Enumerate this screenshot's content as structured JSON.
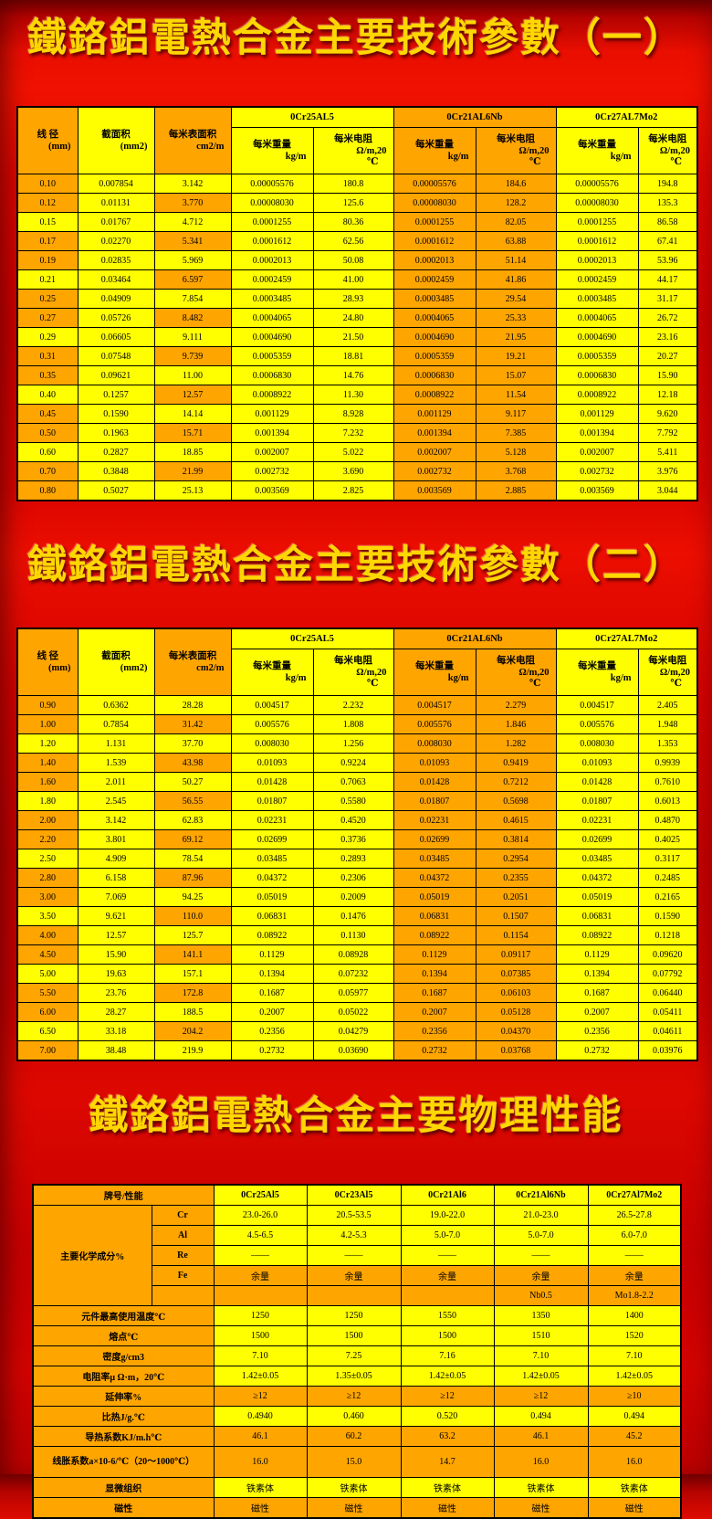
{
  "titles": {
    "t1": "鐵鉻鋁電熱合金主要技術參數（一）",
    "t2": "鐵鉻鋁電熱合金主要技術參數（二）",
    "t3": "鐵鉻鋁電熱合金主要物理性能"
  },
  "tech_header": {
    "diameter_label": "线 径",
    "diameter_unit": "(mm)",
    "area_label": "截面积",
    "area_unit": "(mm2)",
    "surface_label": "每米表面积",
    "surface_unit": "cm2/m",
    "weight_label": "每米重量",
    "weight_unit": "kg/m",
    "resistance_label": "每米电阻",
    "resistance_unit": "Ω/m,20",
    "resistance_unit2": "℃"
  },
  "table1": {
    "alloys": [
      "0Cr25AL5",
      "0Cr21AL6Nb",
      "0Cr27AL7Mo2"
    ],
    "rows": [
      [
        "0.10",
        "0.007854",
        "3.142",
        "0.00005576",
        "180.8",
        "0.00005576",
        "184.6",
        "0.00005576",
        "194.8"
      ],
      [
        "0.12",
        "0.01131",
        "3.770",
        "0.00008030",
        "125.6",
        "0.00008030",
        "128.2",
        "0.00008030",
        "135.3"
      ],
      [
        "0.15",
        "0.01767",
        "4.712",
        "0.0001255",
        "80.36",
        "0.0001255",
        "82.05",
        "0.0001255",
        "86.58"
      ],
      [
        "0.17",
        "0.02270",
        "5.341",
        "0.0001612",
        "62.56",
        "0.0001612",
        "63.88",
        "0.0001612",
        "67.41"
      ],
      [
        "0.19",
        "0.02835",
        "5.969",
        "0.0002013",
        "50.08",
        "0.0002013",
        "51.14",
        "0.0002013",
        "53.96"
      ],
      [
        "0.21",
        "0.03464",
        "6.597",
        "0.0002459",
        "41.00",
        "0.0002459",
        "41.86",
        "0.0002459",
        "44.17"
      ],
      [
        "0.25",
        "0.04909",
        "7.854",
        "0.0003485",
        "28.93",
        "0.0003485",
        "29.54",
        "0.0003485",
        "31.17"
      ],
      [
        "0.27",
        "0.05726",
        "8.482",
        "0.0004065",
        "24.80",
        "0.0004065",
        "25.33",
        "0.0004065",
        "26.72"
      ],
      [
        "0.29",
        "0.06605",
        "9.111",
        "0.0004690",
        "21.50",
        "0.0004690",
        "21.95",
        "0.0004690",
        "23.16"
      ],
      [
        "0.31",
        "0.07548",
        "9.739",
        "0.0005359",
        "18.81",
        "0.0005359",
        "19.21",
        "0.0005359",
        "20.27"
      ],
      [
        "0.35",
        "0.09621",
        "11.00",
        "0.0006830",
        "14.76",
        "0.0006830",
        "15.07",
        "0.0006830",
        "15.90"
      ],
      [
        "0.40",
        "0.1257",
        "12.57",
        "0.0008922",
        "11.30",
        "0.0008922",
        "11.54",
        "0.0008922",
        "12.18"
      ],
      [
        "0.45",
        "0.1590",
        "14.14",
        "0.001129",
        "8.928",
        "0.001129",
        "9.117",
        "0.001129",
        "9.620"
      ],
      [
        "0.50",
        "0.1963",
        "15.71",
        "0.001394",
        "7.232",
        "0.001394",
        "7.385",
        "0.001394",
        "7.792"
      ],
      [
        "0.60",
        "0.2827",
        "18.85",
        "0.002007",
        "5.022",
        "0.002007",
        "5.128",
        "0.002007",
        "5.411"
      ],
      [
        "0.70",
        "0.3848",
        "21.99",
        "0.002732",
        "3.690",
        "0.002732",
        "3.768",
        "0.002732",
        "3.976"
      ],
      [
        "0.80",
        "0.5027",
        "25.13",
        "0.003569",
        "2.825",
        "0.003569",
        "2.885",
        "0.003569",
        "3.044"
      ]
    ]
  },
  "table2": {
    "alloys": [
      "0Cr25AL5",
      "0Cr21AL6Nb",
      "0Cr27AL7Mo2"
    ],
    "rows": [
      [
        "0.90",
        "0.6362",
        "28.28",
        "0.004517",
        "2.232",
        "0.004517",
        "2.279",
        "0.004517",
        "2.405"
      ],
      [
        "1.00",
        "0.7854",
        "31.42",
        "0.005576",
        "1.808",
        "0.005576",
        "1.846",
        "0.005576",
        "1.948"
      ],
      [
        "1.20",
        "1.131",
        "37.70",
        "0.008030",
        "1.256",
        "0.008030",
        "1.282",
        "0.008030",
        "1.353"
      ],
      [
        "1.40",
        "1.539",
        "43.98",
        "0.01093",
        "0.9224",
        "0.01093",
        "0.9419",
        "0.01093",
        "0.9939"
      ],
      [
        "1.60",
        "2.011",
        "50.27",
        "0.01428",
        "0.7063",
        "0.01428",
        "0.7212",
        "0.01428",
        "0.7610"
      ],
      [
        "1.80",
        "2.545",
        "56.55",
        "0.01807",
        "0.5580",
        "0.01807",
        "0.5698",
        "0.01807",
        "0.6013"
      ],
      [
        "2.00",
        "3.142",
        "62.83",
        "0.02231",
        "0.4520",
        "0.02231",
        "0.4615",
        "0.02231",
        "0.4870"
      ],
      [
        "2.20",
        "3.801",
        "69.12",
        "0.02699",
        "0.3736",
        "0.02699",
        "0.3814",
        "0.02699",
        "0.4025"
      ],
      [
        "2.50",
        "4.909",
        "78.54",
        "0.03485",
        "0.2893",
        "0.03485",
        "0.2954",
        "0.03485",
        "0.3117"
      ],
      [
        "2.80",
        "6.158",
        "87.96",
        "0.04372",
        "0.2306",
        "0.04372",
        "0.2355",
        "0.04372",
        "0.2485"
      ],
      [
        "3.00",
        "7.069",
        "94.25",
        "0.05019",
        "0.2009",
        "0.05019",
        "0.2051",
        "0.05019",
        "0.2165"
      ],
      [
        "3.50",
        "9.621",
        "110.0",
        "0.06831",
        "0.1476",
        "0.06831",
        "0.1507",
        "0.06831",
        "0.1590"
      ],
      [
        "4.00",
        "12.57",
        "125.7",
        "0.08922",
        "0.1130",
        "0.08922",
        "0.1154",
        "0.08922",
        "0.1218"
      ],
      [
        "4.50",
        "15.90",
        "141.1",
        "0.1129",
        "0.08928",
        "0.1129",
        "0.09117",
        "0.1129",
        "0.09620"
      ],
      [
        "5.00",
        "19.63",
        "157.1",
        "0.1394",
        "0.07232",
        "0.1394",
        "0.07385",
        "0.1394",
        "0.07792"
      ],
      [
        "5.50",
        "23.76",
        "172.8",
        "0.1687",
        "0.05977",
        "0.1687",
        "0.06103",
        "0.1687",
        "0.06440"
      ],
      [
        "6.00",
        "28.27",
        "188.5",
        "0.2007",
        "0.05022",
        "0.2007",
        "0.05128",
        "0.2007",
        "0.05411"
      ],
      [
        "6.50",
        "33.18",
        "204.2",
        "0.2356",
        "0.04279",
        "0.2356",
        "0.04370",
        "0.2356",
        "0.04611"
      ],
      [
        "7.00",
        "38.48",
        "219.9",
        "0.2732",
        "0.03690",
        "0.2732",
        "0.03768",
        "0.2732",
        "0.03976"
      ]
    ]
  },
  "table3": {
    "corner_label": "牌号/性能",
    "alloys": [
      "0Cr25Al5",
      "0Cr23Al5",
      "0Cr21Al6",
      "0Cr21Al6Nb",
      "0Cr27Al7Mo2"
    ],
    "chem_group_label": "主要化学成分%",
    "chem_rows": [
      {
        "sub": "Cr",
        "shade": "y",
        "values": [
          "23.0-26.0",
          "20.5-53.5",
          "19.0-22.0",
          "21.0-23.0",
          "26.5-27.8"
        ]
      },
      {
        "sub": "Al",
        "shade": "y",
        "values": [
          "4.5-6.5",
          "4.2-5.3",
          "5.0-7.0",
          "5.0-7.0",
          "6.0-7.0"
        ]
      },
      {
        "sub": "Re",
        "shade": "y",
        "values": [
          "——",
          "——",
          "——",
          "——",
          "——"
        ]
      },
      {
        "sub": "Fe",
        "shade": "o",
        "values": [
          "余量",
          "余量",
          "余量",
          "余量",
          "余量"
        ]
      },
      {
        "sub": "",
        "shade": "o",
        "values": [
          "",
          "",
          "",
          "Nb0.5",
          "Mo1.8-2.2"
        ]
      }
    ],
    "prop_rows": [
      {
        "label": "元件最高使用温度℃",
        "shade": "y",
        "values": [
          "1250",
          "1250",
          "1550",
          "1350",
          "1400"
        ]
      },
      {
        "label": "熔点℃",
        "shade": "y",
        "values": [
          "1500",
          "1500",
          "1500",
          "1510",
          "1520"
        ]
      },
      {
        "label": "密度g/cm3",
        "shade": "y",
        "values": [
          "7.10",
          "7.25",
          "7.16",
          "7.10",
          "7.10"
        ]
      },
      {
        "label": "电阻率μ Ω·m，20℃",
        "shade": "y",
        "values": [
          "1.42±0.05",
          "1.35±0.05",
          "1.42±0.05",
          "1.42±0.05",
          "1.42±0.05"
        ]
      },
      {
        "label": "延伸率%",
        "shade": "o",
        "values": [
          "≥12",
          "≥12",
          "≥12",
          "≥12",
          "≥10"
        ]
      },
      {
        "label": "比热J/g.℃",
        "shade": "y",
        "values": [
          "0.4940",
          "0.460",
          "0.520",
          "0.494",
          "0.494"
        ]
      },
      {
        "label": "导热系数KJ/m.h℃",
        "shade": "o",
        "values": [
          "46.1",
          "60.2",
          "63.2",
          "46.1",
          "45.2"
        ]
      },
      {
        "label": "线胀系数a×10-6/℃（20～1000℃）",
        "shade": "o",
        "tall": true,
        "values": [
          "16.0",
          "15.0",
          "14.7",
          "16.0",
          "16.0"
        ]
      },
      {
        "label": "显微组织",
        "shade": "y",
        "values": [
          "铁素体",
          "铁素体",
          "铁素体",
          "铁素体",
          "铁素体"
        ]
      },
      {
        "label": "磁性",
        "shade": "o",
        "values": [
          "磁性",
          "磁性",
          "磁性",
          "磁性",
          "磁性"
        ]
      }
    ]
  },
  "colors": {
    "orange": "#ffa500",
    "yellow": "#ffff00",
    "background_red": "#d40200",
    "title_gold": "#ffd700",
    "border_black": "#000000"
  }
}
